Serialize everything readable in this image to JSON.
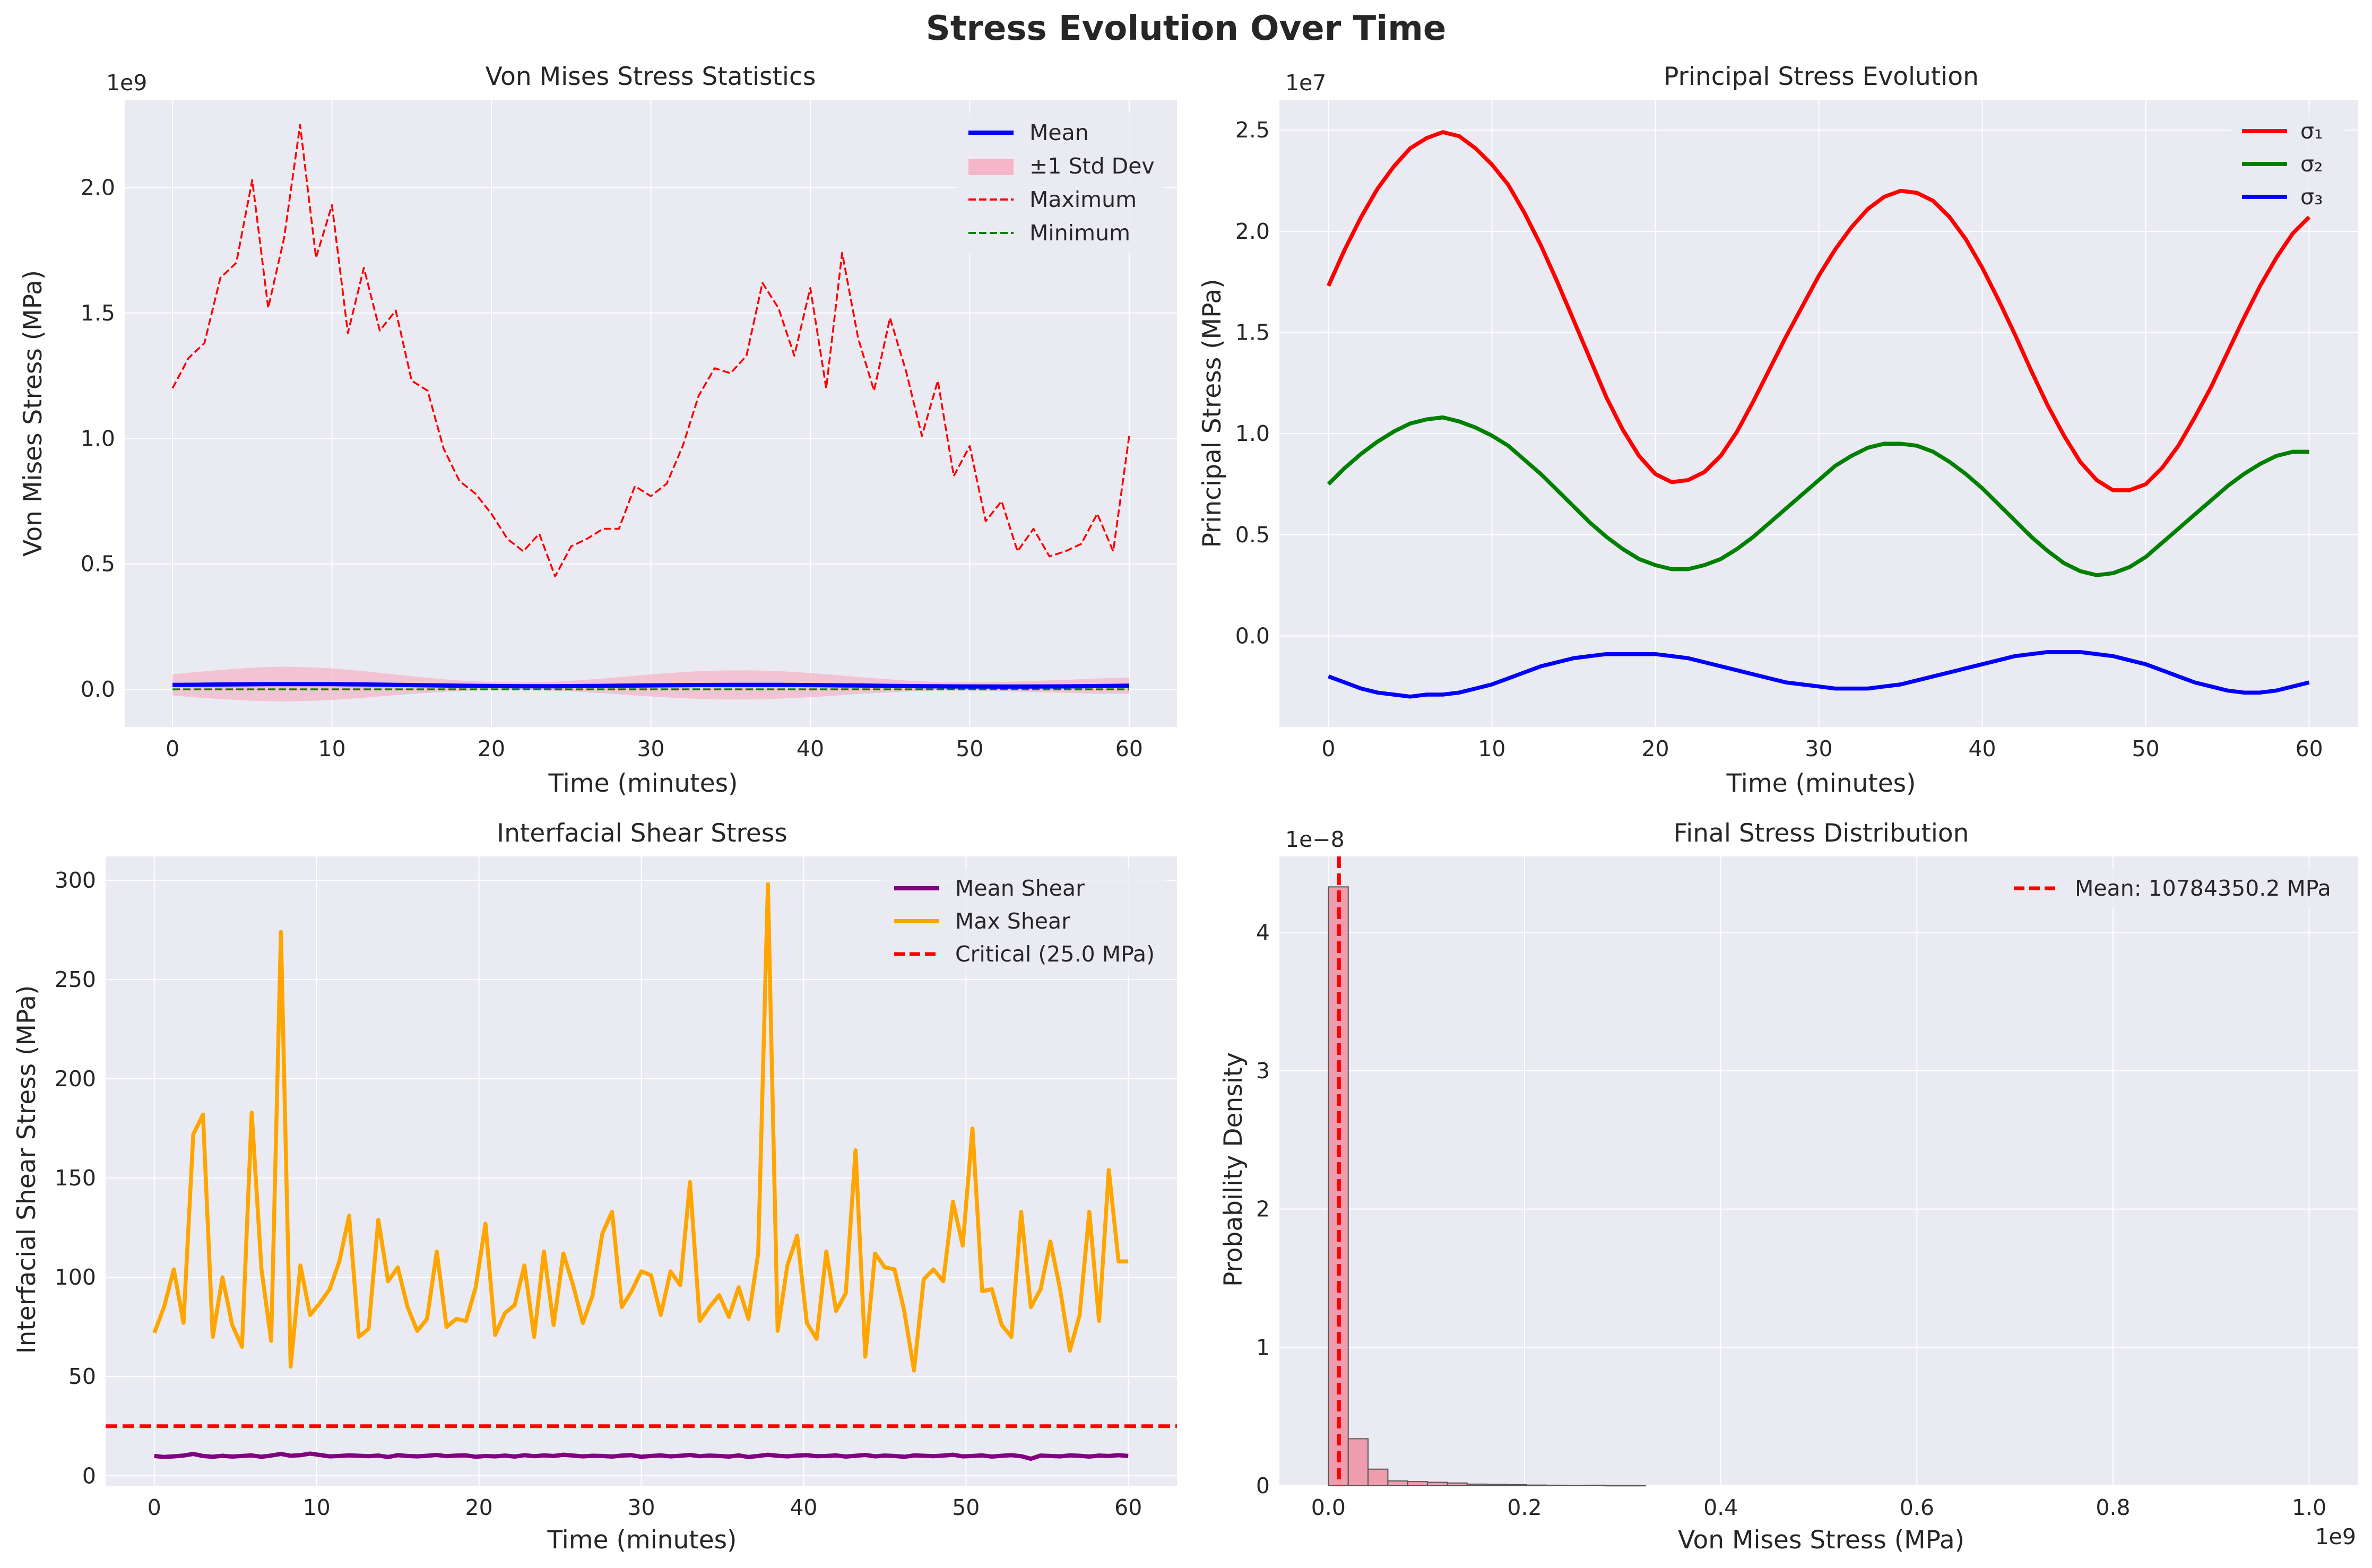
{
  "figure_title": "Stress Evolution Over Time",
  "colors": {
    "panel_bg": "#EAEAF2",
    "grid": "#FFFFFF",
    "mean": "#0000FF",
    "std_band": "#F4B6C8",
    "maximum": "#FF0000",
    "minimum": "#008000",
    "sigma1": "#FF0000",
    "sigma2": "#008000",
    "sigma3": "#0000FF",
    "mean_shear": "#800080",
    "max_shear": "#FFA500",
    "critical": "#FF0000",
    "hist_bar": "#F0889D",
    "hist_edge": "#555555"
  },
  "chart_data": [
    {
      "id": "vm",
      "type": "line",
      "title": "Von Mises Stress Statistics",
      "xlabel": "Time (minutes)",
      "ylabel": "Von Mises Stress (MPa)",
      "offset_text": "1e9",
      "xlim": [
        -3,
        63
      ],
      "ylim": [
        -0.15,
        2.35
      ],
      "xticks": [
        0,
        10,
        20,
        30,
        40,
        50,
        60
      ],
      "yticks": [
        0.0,
        0.5,
        1.0,
        1.5,
        2.0
      ],
      "ytick_labels": [
        "0.0",
        "0.5",
        "1.0",
        "1.5",
        "2.0"
      ],
      "grid": true,
      "legend_position": "upper right",
      "legend": [
        "Mean",
        "±1 Std Dev",
        "Maximum",
        "Minimum"
      ],
      "x": [
        0,
        1,
        2,
        3,
        4,
        5,
        6,
        7,
        8,
        9,
        10,
        11,
        12,
        13,
        14,
        15,
        16,
        17,
        18,
        19,
        20,
        21,
        22,
        23,
        24,
        25,
        26,
        27,
        28,
        29,
        30,
        31,
        32,
        33,
        34,
        35,
        36,
        37,
        38,
        39,
        40,
        41,
        42,
        43,
        44,
        45,
        46,
        47,
        48,
        49,
        50,
        51,
        52,
        53,
        54,
        55,
        56,
        57,
        58,
        59,
        60
      ],
      "series": [
        {
          "name": "Maximum",
          "style": "dashed",
          "values": [
            1.2,
            1.32,
            1.38,
            1.64,
            1.7,
            2.03,
            1.52,
            1.8,
            2.25,
            1.72,
            1.93,
            1.42,
            1.68,
            1.43,
            1.51,
            1.23,
            1.19,
            0.96,
            0.83,
            0.78,
            0.7,
            0.6,
            0.55,
            0.62,
            0.45,
            0.57,
            0.6,
            0.64,
            0.64,
            0.81,
            0.77,
            0.82,
            0.97,
            1.17,
            1.28,
            1.26,
            1.33,
            1.62,
            1.52,
            1.33,
            1.6,
            1.2,
            1.74,
            1.4,
            1.19,
            1.48,
            1.27,
            1.01,
            1.23,
            0.85,
            0.97,
            0.67,
            0.75,
            0.55,
            0.64,
            0.53,
            0.55,
            0.58,
            0.7,
            0.55,
            1.01
          ]
        },
        {
          "name": "Minimum",
          "style": "dashed",
          "values": [
            0.0,
            0.0,
            0.0,
            0.0,
            0.0,
            0.0,
            0.0,
            0.0,
            0.0,
            0.0,
            0.0,
            0.0,
            0.0,
            0.0,
            0.0,
            0.0,
            0.0,
            0.0,
            0.0,
            0.0,
            0.0,
            0.0,
            0.0,
            0.0,
            0.0,
            0.0,
            0.0,
            0.0,
            0.0,
            0.0,
            0.0,
            0.0,
            0.0,
            0.0,
            0.0,
            0.0,
            0.0,
            0.0,
            0.0,
            0.0,
            0.0,
            0.0,
            0.0,
            0.0,
            0.0,
            0.0,
            0.0,
            0.0,
            0.0,
            0.0,
            0.0,
            0.0,
            0.0,
            0.0,
            0.0,
            0.0,
            0.0,
            0.0,
            0.0,
            0.0,
            0.0
          ]
        },
        {
          "name": "Mean",
          "style": "solid",
          "values": [
            0.0175,
            0.018,
            0.0186,
            0.0192,
            0.0198,
            0.0203,
            0.0207,
            0.021,
            0.021,
            0.0209,
            0.0206,
            0.0201,
            0.0194,
            0.0186,
            0.0178,
            0.0169,
            0.016,
            0.0151,
            0.0143,
            0.0136,
            0.013,
            0.0126,
            0.0124,
            0.0124,
            0.0125,
            0.0128,
            0.0132,
            0.0137,
            0.0143,
            0.0149,
            0.0155,
            0.0161,
            0.0166,
            0.017,
            0.0173,
            0.0175,
            0.0176,
            0.0176,
            0.0175,
            0.0172,
            0.0168,
            0.0163,
            0.0157,
            0.0151,
            0.0144,
            0.0137,
            0.0131,
            0.0125,
            0.012,
            0.0116,
            0.0113,
            0.0111,
            0.011,
            0.011,
            0.0112,
            0.0115,
            0.0119,
            0.0124,
            0.013,
            0.0137,
            0.0144
          ]
        },
        {
          "name": "±1 Std Dev",
          "style": "band",
          "values": [
            0.042,
            0.048,
            0.053,
            0.058,
            0.062,
            0.066,
            0.068,
            0.069,
            0.068,
            0.066,
            0.063,
            0.058,
            0.053,
            0.047,
            0.041,
            0.035,
            0.03,
            0.025,
            0.021,
            0.018,
            0.016,
            0.015,
            0.015,
            0.016,
            0.018,
            0.021,
            0.025,
            0.029,
            0.034,
            0.039,
            0.044,
            0.048,
            0.052,
            0.055,
            0.057,
            0.058,
            0.058,
            0.057,
            0.055,
            0.052,
            0.048,
            0.044,
            0.039,
            0.034,
            0.03,
            0.026,
            0.022,
            0.019,
            0.017,
            0.016,
            0.016,
            0.017,
            0.018,
            0.02,
            0.022,
            0.024,
            0.026,
            0.028,
            0.03,
            0.031,
            0.032
          ]
        }
      ]
    },
    {
      "id": "ps",
      "type": "line",
      "title": "Principal Stress Evolution",
      "xlabel": "Time (minutes)",
      "ylabel": "Principal Stress (MPa)",
      "offset_text": "1e7",
      "xlim": [
        -3,
        63
      ],
      "ylim": [
        -0.45,
        2.65
      ],
      "xticks": [
        0,
        10,
        20,
        30,
        40,
        50,
        60
      ],
      "yticks": [
        0.0,
        0.5,
        1.0,
        1.5,
        2.0,
        2.5
      ],
      "ytick_labels": [
        "0.0",
        "0.5",
        "1.0",
        "1.5",
        "2.0",
        "2.5"
      ],
      "grid": true,
      "legend_position": "upper right",
      "legend": [
        "σ₁",
        "σ₂",
        "σ₃"
      ],
      "x": [
        0,
        1,
        2,
        3,
        4,
        5,
        6,
        7,
        8,
        9,
        10,
        11,
        12,
        13,
        14,
        15,
        16,
        17,
        18,
        19,
        20,
        21,
        22,
        23,
        24,
        25,
        26,
        27,
        28,
        29,
        30,
        31,
        32,
        33,
        34,
        35,
        36,
        37,
        38,
        39,
        40,
        41,
        42,
        43,
        44,
        45,
        46,
        47,
        48,
        49,
        50,
        51,
        52,
        53,
        54,
        55,
        56,
        57,
        58,
        59,
        60
      ],
      "series": [
        {
          "name": "σ₁",
          "values": [
            1.73,
            1.91,
            2.07,
            2.21,
            2.32,
            2.41,
            2.46,
            2.49,
            2.47,
            2.41,
            2.33,
            2.23,
            2.09,
            1.93,
            1.75,
            1.56,
            1.37,
            1.18,
            1.02,
            0.89,
            0.8,
            0.76,
            0.77,
            0.81,
            0.89,
            1.01,
            1.16,
            1.32,
            1.48,
            1.63,
            1.78,
            1.91,
            2.02,
            2.11,
            2.17,
            2.2,
            2.19,
            2.15,
            2.07,
            1.96,
            1.82,
            1.66,
            1.49,
            1.31,
            1.14,
            0.99,
            0.86,
            0.77,
            0.72,
            0.72,
            0.75,
            0.83,
            0.94,
            1.08,
            1.23,
            1.4,
            1.57,
            1.73,
            1.87,
            1.99,
            2.07
          ]
        },
        {
          "name": "σ₂",
          "values": [
            0.75,
            0.83,
            0.9,
            0.96,
            1.01,
            1.05,
            1.07,
            1.08,
            1.06,
            1.03,
            0.99,
            0.94,
            0.87,
            0.8,
            0.72,
            0.64,
            0.56,
            0.49,
            0.43,
            0.38,
            0.35,
            0.33,
            0.33,
            0.35,
            0.38,
            0.43,
            0.49,
            0.56,
            0.63,
            0.7,
            0.77,
            0.84,
            0.89,
            0.93,
            0.95,
            0.95,
            0.94,
            0.91,
            0.86,
            0.8,
            0.73,
            0.65,
            0.57,
            0.49,
            0.42,
            0.36,
            0.32,
            0.3,
            0.31,
            0.34,
            0.39,
            0.46,
            0.53,
            0.6,
            0.67,
            0.74,
            0.8,
            0.85,
            0.89,
            0.91,
            0.91
          ]
        },
        {
          "name": "σ₃",
          "values": [
            -0.2,
            -0.23,
            -0.26,
            -0.28,
            -0.29,
            -0.3,
            -0.29,
            -0.29,
            -0.28,
            -0.26,
            -0.24,
            -0.21,
            -0.18,
            -0.15,
            -0.13,
            -0.11,
            -0.1,
            -0.09,
            -0.09,
            -0.09,
            -0.09,
            -0.1,
            -0.11,
            -0.13,
            -0.15,
            -0.17,
            -0.19,
            -0.21,
            -0.23,
            -0.24,
            -0.25,
            -0.26,
            -0.26,
            -0.26,
            -0.25,
            -0.24,
            -0.22,
            -0.2,
            -0.18,
            -0.16,
            -0.14,
            -0.12,
            -0.1,
            -0.09,
            -0.08,
            -0.08,
            -0.08,
            -0.09,
            -0.1,
            -0.12,
            -0.14,
            -0.17,
            -0.2,
            -0.23,
            -0.25,
            -0.27,
            -0.28,
            -0.28,
            -0.27,
            -0.25,
            -0.23
          ]
        }
      ]
    },
    {
      "id": "shear",
      "type": "line",
      "title": "Interfacial Shear Stress",
      "xlabel": "Time (minutes)",
      "ylabel": "Interfacial Shear Stress (MPa)",
      "xlim": [
        -3,
        63
      ],
      "ylim": [
        -5,
        312
      ],
      "xticks": [
        0,
        10,
        20,
        30,
        40,
        50,
        60
      ],
      "yticks": [
        0,
        50,
        100,
        150,
        200,
        250,
        300
      ],
      "ytick_labels": [
        "0",
        "50",
        "100",
        "150",
        "200",
        "250",
        "300"
      ],
      "grid": true,
      "legend_position": "upper right",
      "legend": [
        "Mean Shear",
        "Max Shear",
        "Critical (25.0 MPa)"
      ],
      "critical_value": 25.0,
      "x": [
        0,
        0.6,
        1.2,
        1.8,
        2.4,
        3.0,
        3.6,
        4.2,
        4.8,
        5.4,
        6.0,
        6.6,
        7.2,
        7.8,
        8.4,
        9.0,
        9.6,
        10.2,
        10.8,
        11.4,
        12.0,
        12.6,
        13.2,
        13.8,
        14.4,
        15.0,
        15.6,
        16.2,
        16.8,
        17.4,
        18.0,
        18.6,
        19.2,
        19.8,
        20.4,
        21.0,
        21.6,
        22.2,
        22.8,
        23.4,
        24.0,
        24.6,
        25.2,
        25.8,
        26.4,
        27.0,
        27.6,
        28.2,
        28.8,
        29.4,
        30.0,
        30.6,
        31.2,
        31.8,
        32.4,
        33.0,
        33.6,
        34.2,
        34.8,
        35.4,
        36.0,
        36.6,
        37.2,
        37.8,
        38.4,
        39.0,
        39.6,
        40.2,
        40.8,
        41.4,
        42.0,
        42.6,
        43.2,
        43.8,
        44.4,
        45.0,
        45.6,
        46.2,
        46.8,
        47.4,
        48.0,
        48.6,
        49.2,
        49.8,
        50.4,
        51.0,
        51.6,
        52.2,
        52.8,
        53.4,
        54.0,
        54.6,
        55.2,
        55.8,
        56.4,
        57.0,
        57.6,
        58.2,
        58.8,
        59.4,
        60.0
      ],
      "series": [
        {
          "name": "Max Shear",
          "values": [
            72,
            85,
            104,
            77,
            172,
            182,
            70,
            100,
            76,
            65,
            183,
            104,
            68,
            274,
            55,
            106,
            81,
            87,
            94,
            108,
            131,
            70,
            74,
            129,
            98,
            105,
            85,
            73,
            79,
            113,
            75,
            79,
            78,
            95,
            127,
            71,
            82,
            86,
            106,
            70,
            113,
            76,
            112,
            96,
            77,
            91,
            122,
            133,
            85,
            93,
            103,
            101,
            81,
            103,
            96,
            148,
            78,
            85,
            91,
            80,
            95,
            79,
            112,
            298,
            73,
            106,
            121,
            77,
            69,
            113,
            83,
            92,
            164,
            60,
            112,
            105,
            104,
            83,
            53,
            99,
            104,
            98,
            138,
            116,
            175,
            93,
            94,
            76,
            70,
            133,
            85,
            94,
            118,
            94,
            63,
            81,
            133,
            78,
            154,
            108,
            108
          ]
        },
        {
          "name": "Mean Shear",
          "values": [
            10.0,
            9.5,
            9.8,
            10.2,
            11.0,
            10.0,
            9.6,
            10.1,
            9.7,
            10.0,
            10.3,
            9.6,
            10.2,
            11.0,
            10.1,
            10.4,
            11.2,
            10.5,
            9.8,
            10.0,
            10.3,
            10.1,
            9.9,
            10.2,
            9.5,
            10.4,
            10.0,
            9.8,
            10.1,
            10.5,
            9.9,
            10.2,
            10.3,
            9.6,
            10.0,
            9.8,
            10.2,
            9.7,
            10.4,
            9.9,
            10.3,
            10.0,
            10.6,
            10.2,
            9.8,
            10.1,
            10.0,
            9.7,
            10.2,
            10.4,
            9.6,
            10.0,
            10.3,
            9.8,
            10.1,
            10.5,
            9.9,
            10.2,
            10.0,
            9.7,
            10.3,
            9.5,
            10.0,
            10.6,
            10.1,
            9.8,
            10.2,
            10.4,
            9.9,
            10.0,
            10.3,
            9.7,
            10.1,
            10.5,
            9.8,
            10.2,
            10.0,
            9.6,
            10.3,
            10.1,
            9.9,
            10.2,
            10.6,
            9.8,
            10.0,
            10.3,
            9.7,
            10.1,
            10.4,
            9.9,
            8.6,
            10.2,
            10.0,
            9.8,
            10.3,
            10.1,
            9.7,
            10.2,
            10.0,
            10.4,
            10.0
          ]
        }
      ]
    },
    {
      "id": "hist",
      "type": "bar",
      "title": "Final Stress Distribution",
      "xlabel": "Von Mises Stress (MPa)",
      "ylabel": "Probability Density",
      "x_offset_text": "1e9",
      "y_offset_text": "1e−8",
      "xlim": [
        -0.05,
        1.05
      ],
      "ylim": [
        0,
        4.55
      ],
      "xticks": [
        0.0,
        0.2,
        0.4,
        0.6,
        0.8,
        1.0
      ],
      "xtick_labels": [
        "0.0",
        "0.2",
        "0.4",
        "0.6",
        "0.8",
        "1.0"
      ],
      "yticks": [
        0,
        1,
        2,
        3,
        4
      ],
      "ytick_labels": [
        "0",
        "1",
        "2",
        "3",
        "4"
      ],
      "grid": true,
      "legend_position": "upper right",
      "legend": [
        "Mean: 10784350.2 MPa"
      ],
      "mean_value": 0.0107843502,
      "bin_width": 0.0202,
      "bin_starts": [
        0.0,
        0.0202,
        0.0404,
        0.0606,
        0.0808,
        0.101,
        0.1212,
        0.1414,
        0.1616,
        0.1818,
        0.202,
        0.2222,
        0.2424,
        0.2626,
        0.2828,
        0.303
      ],
      "values": [
        4.33,
        0.34,
        0.12,
        0.035,
        0.03,
        0.025,
        0.02,
        0.012,
        0.01,
        0.008,
        0.005,
        0.004,
        0.002,
        0.004,
        0.001,
        0.001
      ]
    }
  ]
}
